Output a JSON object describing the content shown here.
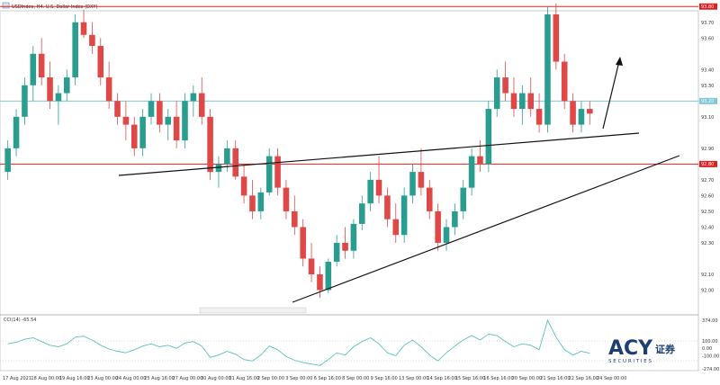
{
  "window": {
    "title": "USDIndex, H4: U.S. Dollar Index (DXY)",
    "icon": "chart-window-icon"
  },
  "indicator": {
    "label": "CCI(14) -65.54",
    "levels": [
      "374.00",
      "100.00",
      "0.00",
      "-100.00",
      "-274.00"
    ]
  },
  "price_levels": [
    {
      "value": 93.8,
      "label": "93.80",
      "color": "#e02020"
    },
    {
      "value": 93.2,
      "label": "93.20",
      "color": "#7ec8d8"
    },
    {
      "value": 92.8,
      "label": "92.80",
      "color": "#e02020"
    }
  ],
  "y_axis_ticks": [
    "93.70",
    "93.60",
    "93.40",
    "93.30",
    "93.20",
    "93.10",
    "92.90",
    "92.70",
    "92.60",
    "92.50",
    "92.40",
    "92.30",
    "92.10",
    "92.00"
  ],
  "x_axis_ticks": [
    "17 Aug 2021",
    "18 Aug 00:00",
    "19 Aug 16:00",
    "23 Aug 00:00",
    "24 Aug 00:00",
    "25 Aug 16:00",
    "27 Aug 00:00",
    "30 Aug 00:00",
    "31 Aug 16:00",
    "2 Sep 00:00",
    "3 Sep 00:00",
    "6 Sep 16:00",
    "8 Sep 00:00",
    "9 Sep 16:00",
    "13 Sep 00:00",
    "14 Sep 16:00",
    "15 Sep 16:00",
    "16 Sep 16:00",
    "20 Sep 00:00",
    "21 Sep 16:00",
    "22 Sep 16:00",
    "24 Sep 00:00"
  ],
  "brand": {
    "logo_text": "ACY",
    "logo_cn": "证券",
    "tagline": "S E C U R I T I E S",
    "color": "#1c3f73"
  },
  "colors": {
    "bull": "#2a9d8f",
    "bear": "#e04848",
    "cci_line": "#5bc0c0",
    "trendline": "#111111"
  },
  "chart_data": {
    "type": "candlestick",
    "title": "USDIndex, H4: U.S. Dollar Index (DXY)",
    "ylim": [
      91.9,
      93.75
    ],
    "candles": [
      [
        92.75,
        92.95,
        92.7,
        92.9
      ],
      [
        92.9,
        93.15,
        92.85,
        93.1
      ],
      [
        93.1,
        93.35,
        93.05,
        93.3
      ],
      [
        93.3,
        93.55,
        93.2,
        93.5
      ],
      [
        93.5,
        93.6,
        93.3,
        93.35
      ],
      [
        93.35,
        93.45,
        93.15,
        93.2
      ],
      [
        93.2,
        93.3,
        93.05,
        93.25
      ],
      [
        93.25,
        93.4,
        93.2,
        93.35
      ],
      [
        93.35,
        93.75,
        93.3,
        93.7
      ],
      [
        93.7,
        93.78,
        93.6,
        93.62
      ],
      [
        93.62,
        93.7,
        93.5,
        93.55
      ],
      [
        93.55,
        93.6,
        93.3,
        93.35
      ],
      [
        93.35,
        93.45,
        93.15,
        93.2
      ],
      [
        93.2,
        93.25,
        93.05,
        93.1
      ],
      [
        93.1,
        93.2,
        92.95,
        93.05
      ],
      [
        93.05,
        93.1,
        92.85,
        92.9
      ],
      [
        92.9,
        93.15,
        92.85,
        93.1
      ],
      [
        93.1,
        93.25,
        93.05,
        93.2
      ],
      [
        93.2,
        93.25,
        93.0,
        93.05
      ],
      [
        93.05,
        93.15,
        92.95,
        93.1
      ],
      [
        93.1,
        93.2,
        92.9,
        92.95
      ],
      [
        92.95,
        93.25,
        92.9,
        93.2
      ],
      [
        93.2,
        93.3,
        93.1,
        93.25
      ],
      [
        93.25,
        93.35,
        93.05,
        93.1
      ],
      [
        93.1,
        93.15,
        92.7,
        92.75
      ],
      [
        92.75,
        92.85,
        92.65,
        92.8
      ],
      [
        92.8,
        92.95,
        92.75,
        92.9
      ],
      [
        92.9,
        92.95,
        92.7,
        92.72
      ],
      [
        92.72,
        92.8,
        92.55,
        92.6
      ],
      [
        92.6,
        92.7,
        92.45,
        92.5
      ],
      [
        92.5,
        92.65,
        92.45,
        92.62
      ],
      [
        92.62,
        92.9,
        92.6,
        92.85
      ],
      [
        92.85,
        92.9,
        92.6,
        92.65
      ],
      [
        92.65,
        92.7,
        92.45,
        92.5
      ],
      [
        92.5,
        92.6,
        92.35,
        92.4
      ],
      [
        92.4,
        92.45,
        92.15,
        92.2
      ],
      [
        92.2,
        92.3,
        92.05,
        92.1
      ],
      [
        92.1,
        92.15,
        91.95,
        92.0
      ],
      [
        92.0,
        92.2,
        91.98,
        92.18
      ],
      [
        92.18,
        92.35,
        92.15,
        92.3
      ],
      [
        92.3,
        92.4,
        92.2,
        92.25
      ],
      [
        92.25,
        92.45,
        92.2,
        92.42
      ],
      [
        92.42,
        92.6,
        92.38,
        92.55
      ],
      [
        92.55,
        92.75,
        92.5,
        92.7
      ],
      [
        92.7,
        92.85,
        92.55,
        92.6
      ],
      [
        92.6,
        92.65,
        92.4,
        92.45
      ],
      [
        92.45,
        92.55,
        92.3,
        92.35
      ],
      [
        92.35,
        92.65,
        92.3,
        92.6
      ],
      [
        92.6,
        92.8,
        92.55,
        92.75
      ],
      [
        92.75,
        92.9,
        92.6,
        92.65
      ],
      [
        92.65,
        92.7,
        92.45,
        92.5
      ],
      [
        92.5,
        92.55,
        92.25,
        92.3
      ],
      [
        92.3,
        92.45,
        92.25,
        92.4
      ],
      [
        92.4,
        92.55,
        92.35,
        92.5
      ],
      [
        92.5,
        92.7,
        92.45,
        92.65
      ],
      [
        92.65,
        92.9,
        92.6,
        92.85
      ],
      [
        92.85,
        92.95,
        92.75,
        92.8
      ],
      [
        92.8,
        93.2,
        92.75,
        93.15
      ],
      [
        93.15,
        93.4,
        93.1,
        93.35
      ],
      [
        93.35,
        93.45,
        93.2,
        93.25
      ],
      [
        93.25,
        93.35,
        93.1,
        93.15
      ],
      [
        93.15,
        93.3,
        93.05,
        93.25
      ],
      [
        93.25,
        93.35,
        93.1,
        93.15
      ],
      [
        93.15,
        93.25,
        93.0,
        93.05
      ],
      [
        93.05,
        93.8,
        93.0,
        93.75
      ],
      [
        93.75,
        93.82,
        93.4,
        93.45
      ],
      [
        93.45,
        93.5,
        93.15,
        93.2
      ],
      [
        93.2,
        93.25,
        93.0,
        93.05
      ],
      [
        93.05,
        93.2,
        93.0,
        93.15
      ],
      [
        93.15,
        93.2,
        93.05,
        93.12
      ]
    ],
    "cci": [
      60,
      80,
      120,
      140,
      90,
      40,
      20,
      60,
      150,
      160,
      110,
      40,
      -10,
      -40,
      -60,
      -20,
      30,
      60,
      20,
      40,
      0,
      70,
      90,
      30,
      -120,
      -90,
      -40,
      -80,
      -150,
      -170,
      -90,
      30,
      -20,
      -110,
      -160,
      -190,
      -210,
      -230,
      -150,
      -60,
      -90,
      20,
      90,
      140,
      60,
      -60,
      -100,
      40,
      110,
      20,
      -90,
      -170,
      -60,
      30,
      110,
      170,
      110,
      190,
      170,
      90,
      20,
      60,
      40,
      -20,
      380,
      150,
      -20,
      -90,
      -40,
      -66
    ]
  }
}
